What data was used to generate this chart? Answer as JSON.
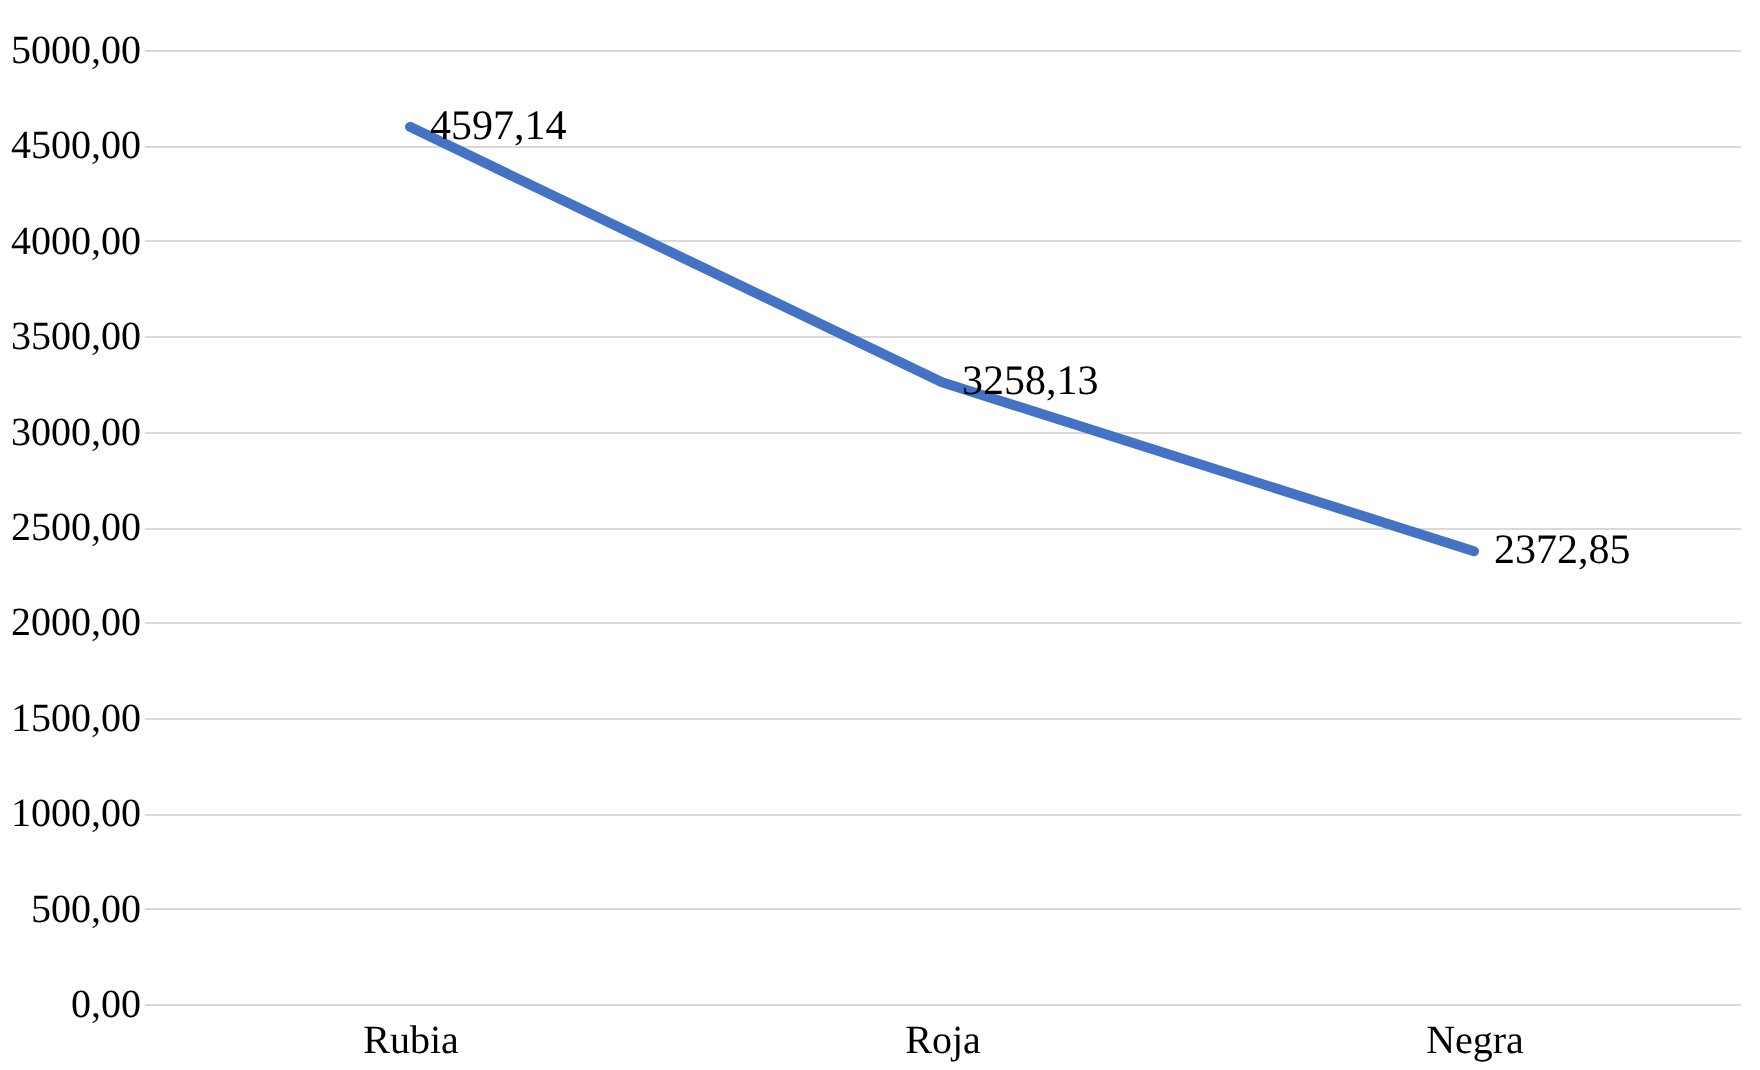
{
  "chart_data": {
    "type": "line",
    "categories": [
      "Rubia",
      "Roja",
      "Negra"
    ],
    "series": [
      {
        "color": "#4472c4",
        "values": [
          4597.14,
          3258.13,
          2372.85
        ],
        "value_labels": [
          "4597,14",
          "3258,13",
          "2372,85"
        ]
      }
    ],
    "ylim": [
      0,
      5000
    ],
    "yticks": [
      {
        "value": 0,
        "label": "0,00"
      },
      {
        "value": 500,
        "label": "500,00"
      },
      {
        "value": 1000,
        "label": "1000,00"
      },
      {
        "value": 1500,
        "label": "1500,00"
      },
      {
        "value": 2000,
        "label": "2000,00"
      },
      {
        "value": 2500,
        "label": "2500,00"
      },
      {
        "value": 3000,
        "label": "3000,00"
      },
      {
        "value": 3500,
        "label": "3500,00"
      },
      {
        "value": 4000,
        "label": "4000,00"
      },
      {
        "value": 4500,
        "label": "4500,00"
      },
      {
        "value": 5000,
        "label": "5000,00"
      }
    ],
    "grid": "y"
  }
}
